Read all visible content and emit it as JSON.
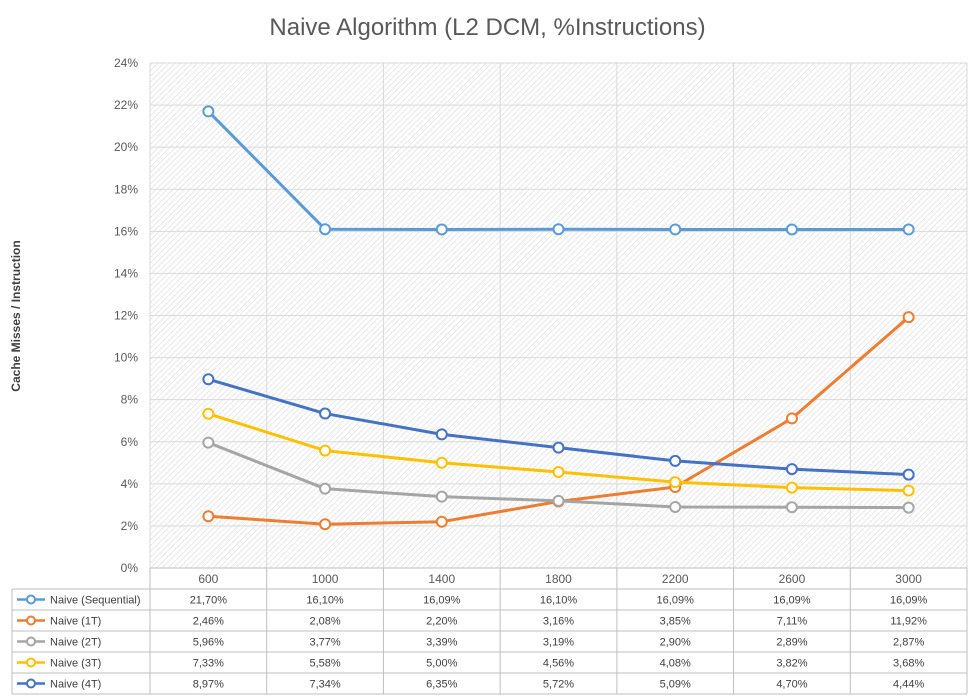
{
  "chart_data": {
    "type": "line",
    "title": "Naive Algorithm (L2 DCM, %Instructions)",
    "ylabel": "Cache Misses / Instruction",
    "xlabel": "",
    "categories": [
      "600",
      "1000",
      "1400",
      "1800",
      "2200",
      "2600",
      "3000"
    ],
    "yticks": [
      "0%",
      "2%",
      "4%",
      "6%",
      "8%",
      "10%",
      "12%",
      "14%",
      "16%",
      "18%",
      "20%",
      "22%",
      "24%"
    ],
    "ylim": [
      0,
      24
    ],
    "grid": true,
    "legend": "data-table",
    "series": [
      {
        "name": "Naive (Sequential)",
        "color": "#5B9BD5",
        "values": [
          21.7,
          16.1,
          16.09,
          16.1,
          16.09,
          16.09,
          16.09
        ],
        "labels": [
          "21,70%",
          "16,10%",
          "16,09%",
          "16,10%",
          "16,09%",
          "16,09%",
          "16,09%"
        ]
      },
      {
        "name": "Naive (1T)",
        "color": "#ED7D31",
        "values": [
          2.46,
          2.08,
          2.2,
          3.16,
          3.85,
          7.11,
          11.92
        ],
        "labels": [
          "2,46%",
          "2,08%",
          "2,20%",
          "3,16%",
          "3,85%",
          "7,11%",
          "11,92%"
        ]
      },
      {
        "name": "Naive (2T)",
        "color": "#A5A5A5",
        "values": [
          5.96,
          3.77,
          3.39,
          3.19,
          2.9,
          2.89,
          2.87
        ],
        "labels": [
          "5,96%",
          "3,77%",
          "3,39%",
          "3,19%",
          "2,90%",
          "2,89%",
          "2,87%"
        ]
      },
      {
        "name": "Naive (3T)",
        "color": "#FFC000",
        "values": [
          7.33,
          5.58,
          5.0,
          4.56,
          4.08,
          3.82,
          3.68
        ],
        "labels": [
          "7,33%",
          "5,58%",
          "5,00%",
          "4,56%",
          "4,08%",
          "3,82%",
          "3,68%"
        ]
      },
      {
        "name": "Naive (4T)",
        "color": "#4472C4",
        "values": [
          8.97,
          7.34,
          6.35,
          5.72,
          5.09,
          4.7,
          4.44
        ],
        "labels": [
          "8,97%",
          "7,34%",
          "6,35%",
          "5,72%",
          "5,09%",
          "4,70%",
          "4,44%"
        ]
      }
    ]
  }
}
